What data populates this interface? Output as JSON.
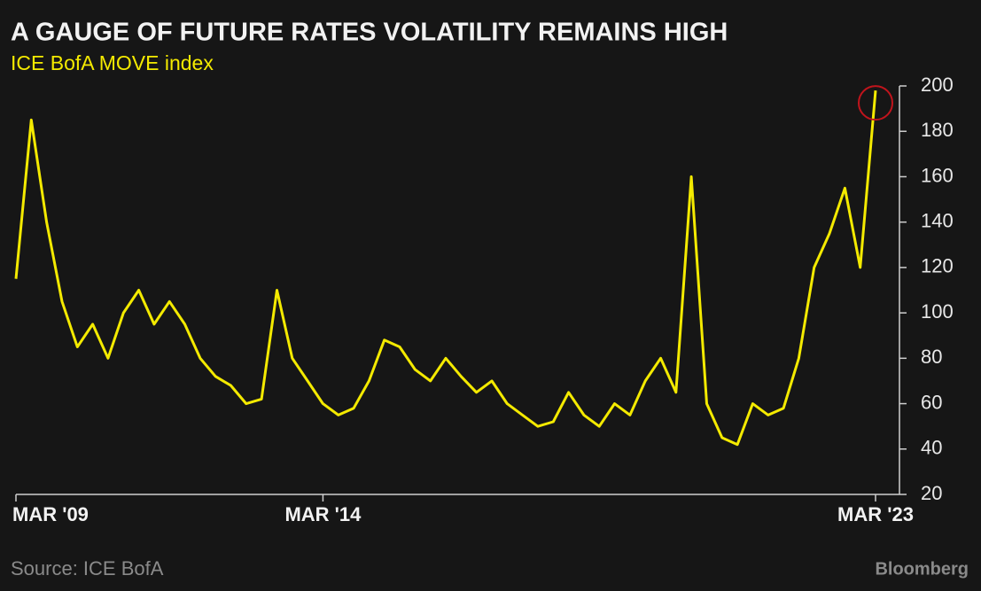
{
  "chart_data": {
    "type": "line",
    "title": "A GAUGE OF FUTURE RATES VOLATILITY REMAINS HIGH",
    "subtitle": "ICE BofA MOVE index",
    "source": "Source: ICE BofA",
    "credit": "Bloomberg",
    "x": [
      "2009-03",
      "2009-06",
      "2009-09",
      "2009-12",
      "2010-03",
      "2010-06",
      "2010-09",
      "2010-12",
      "2011-03",
      "2011-06",
      "2011-09",
      "2011-12",
      "2012-03",
      "2012-06",
      "2012-09",
      "2012-12",
      "2013-03",
      "2013-06",
      "2013-09",
      "2013-12",
      "2014-03",
      "2014-06",
      "2014-09",
      "2014-12",
      "2015-03",
      "2015-06",
      "2015-09",
      "2015-12",
      "2016-03",
      "2016-06",
      "2016-09",
      "2016-12",
      "2017-03",
      "2017-06",
      "2017-09",
      "2017-12",
      "2018-03",
      "2018-06",
      "2018-09",
      "2018-12",
      "2019-03",
      "2019-06",
      "2019-09",
      "2019-12",
      "2020-03",
      "2020-06",
      "2020-09",
      "2020-12",
      "2021-03",
      "2021-06",
      "2021-09",
      "2021-12",
      "2022-03",
      "2022-06",
      "2022-09",
      "2022-12",
      "2023-03"
    ],
    "series": [
      {
        "name": "ICE BofA MOVE index",
        "color": "#f4ea00",
        "values": [
          115,
          185,
          140,
          105,
          85,
          95,
          80,
          100,
          110,
          95,
          105,
          95,
          80,
          72,
          68,
          60,
          62,
          110,
          80,
          70,
          60,
          55,
          58,
          70,
          88,
          85,
          75,
          70,
          80,
          72,
          65,
          70,
          60,
          55,
          50,
          52,
          65,
          55,
          50,
          60,
          55,
          70,
          80,
          65,
          160,
          60,
          45,
          42,
          60,
          55,
          58,
          80,
          120,
          135,
          155,
          120,
          198
        ]
      }
    ],
    "ylim": [
      20,
      200
    ],
    "yticks": [
      20,
      40,
      60,
      80,
      100,
      120,
      140,
      160,
      180,
      200
    ],
    "xticks": [
      {
        "value": "2009-03",
        "label": "MAR '09"
      },
      {
        "value": "2014-03",
        "label": "MAR '14"
      },
      {
        "value": "2023-03",
        "label": "MAR '23"
      }
    ],
    "grid": false
  }
}
